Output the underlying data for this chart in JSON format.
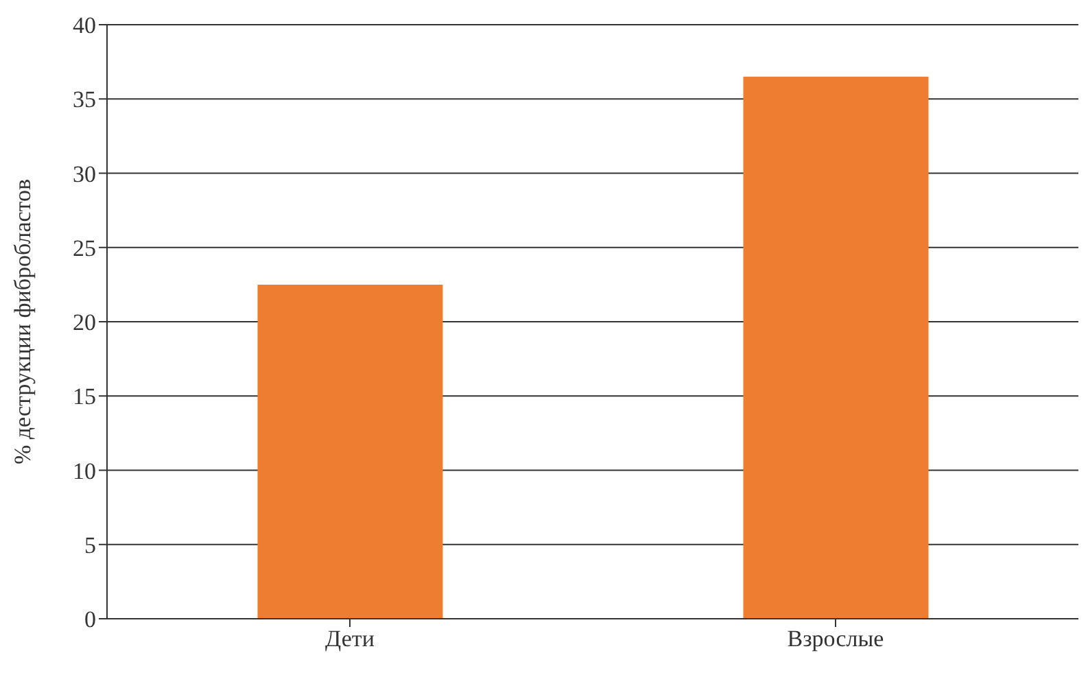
{
  "chart_data": {
    "type": "bar",
    "ylabel": "% деструкции фибробластов",
    "categories": [
      "Дети",
      "Взрослые"
    ],
    "values": [
      22.5,
      36.5
    ],
    "color": "#ee7d31",
    "ylim": [
      0,
      40
    ],
    "yticks": [
      0,
      5,
      10,
      15,
      20,
      25,
      30,
      35,
      40
    ],
    "grid": "y"
  }
}
